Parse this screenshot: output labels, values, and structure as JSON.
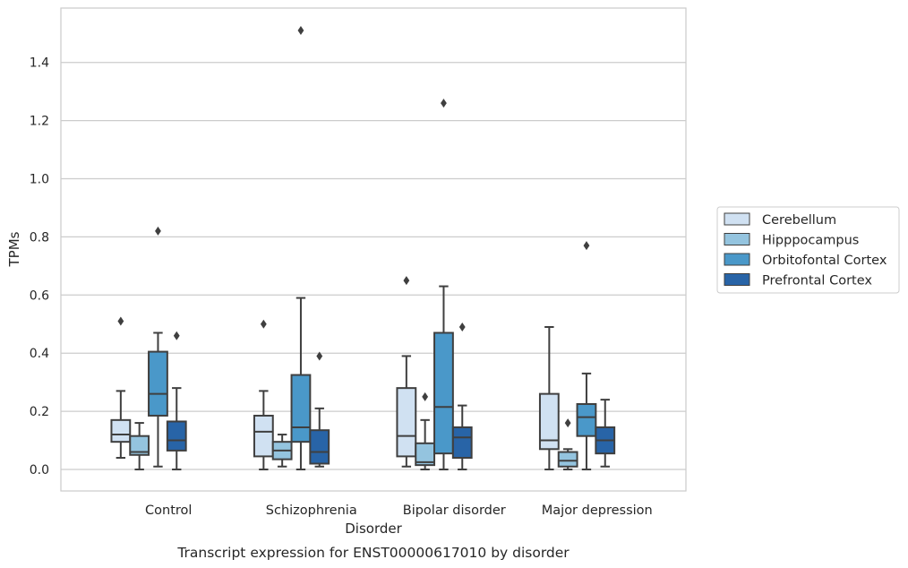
{
  "chart_data": {
    "type": "box",
    "xlabel": "Disorder",
    "ylabel": "TPMs",
    "caption": "Transcript expression for ENST00000617010 by disorder",
    "ylim": [
      -0.075,
      1.59
    ],
    "yticks": [
      "0.0",
      "0.2",
      "0.4",
      "0.6",
      "0.8",
      "1.0",
      "1.2",
      "1.4"
    ],
    "grid": "horizontal",
    "legend_position": "right",
    "categories": [
      "Control",
      "Schizophrenia",
      "Bipolar disorder",
      "Major depression"
    ],
    "series": [
      {
        "name": "Cerebellum",
        "color": "#d0e1f2",
        "boxes": [
          {
            "whislo": 0.04,
            "q1": 0.095,
            "med": 0.12,
            "q3": 0.17,
            "whishi": 0.27,
            "fliers": [
              0.51
            ]
          },
          {
            "whislo": 0.0,
            "q1": 0.045,
            "med": 0.13,
            "q3": 0.185,
            "whishi": 0.27,
            "fliers": [
              0.5
            ]
          },
          {
            "whislo": 0.01,
            "q1": 0.045,
            "med": 0.115,
            "q3": 0.28,
            "whishi": 0.39,
            "fliers": [
              0.65
            ]
          },
          {
            "whislo": 0.0,
            "q1": 0.07,
            "med": 0.1,
            "q3": 0.26,
            "whishi": 0.49,
            "fliers": []
          }
        ]
      },
      {
        "name": "Hipppocampus",
        "color": "#94c4df",
        "boxes": [
          {
            "whislo": 0.0,
            "q1": 0.05,
            "med": 0.06,
            "q3": 0.115,
            "whishi": 0.16,
            "fliers": []
          },
          {
            "whislo": 0.01,
            "q1": 0.035,
            "med": 0.065,
            "q3": 0.095,
            "whishi": 0.12,
            "fliers": []
          },
          {
            "whislo": 0.0,
            "q1": 0.015,
            "med": 0.025,
            "q3": 0.09,
            "whishi": 0.17,
            "fliers": [
              0.25
            ]
          },
          {
            "whislo": 0.0,
            "q1": 0.01,
            "med": 0.03,
            "q3": 0.06,
            "whishi": 0.07,
            "fliers": [
              0.16
            ]
          }
        ]
      },
      {
        "name": "Orbitofontal Cortex",
        "color": "#4a98c9",
        "boxes": [
          {
            "whislo": 0.01,
            "q1": 0.185,
            "med": 0.26,
            "q3": 0.405,
            "whishi": 0.47,
            "fliers": [
              0.82
            ]
          },
          {
            "whislo": 0.0,
            "q1": 0.095,
            "med": 0.145,
            "q3": 0.325,
            "whishi": 0.59,
            "fliers": [
              1.51
            ]
          },
          {
            "whislo": 0.0,
            "q1": 0.055,
            "med": 0.215,
            "q3": 0.47,
            "whishi": 0.63,
            "fliers": [
              1.26
            ]
          },
          {
            "whislo": 0.0,
            "q1": 0.115,
            "med": 0.18,
            "q3": 0.225,
            "whishi": 0.33,
            "fliers": [
              0.77
            ]
          }
        ]
      },
      {
        "name": "Prefrontal Cortex",
        "color": "#2864a7",
        "boxes": [
          {
            "whislo": 0.0,
            "q1": 0.065,
            "med": 0.1,
            "q3": 0.165,
            "whishi": 0.28,
            "fliers": [
              0.46
            ]
          },
          {
            "whislo": 0.01,
            "q1": 0.02,
            "med": 0.06,
            "q3": 0.135,
            "whishi": 0.21,
            "fliers": [
              0.39
            ]
          },
          {
            "whislo": 0.0,
            "q1": 0.04,
            "med": 0.11,
            "q3": 0.145,
            "whishi": 0.22,
            "fliers": [
              0.49
            ]
          },
          {
            "whislo": 0.01,
            "q1": 0.055,
            "med": 0.1,
            "q3": 0.145,
            "whishi": 0.24,
            "fliers": []
          }
        ]
      }
    ]
  }
}
